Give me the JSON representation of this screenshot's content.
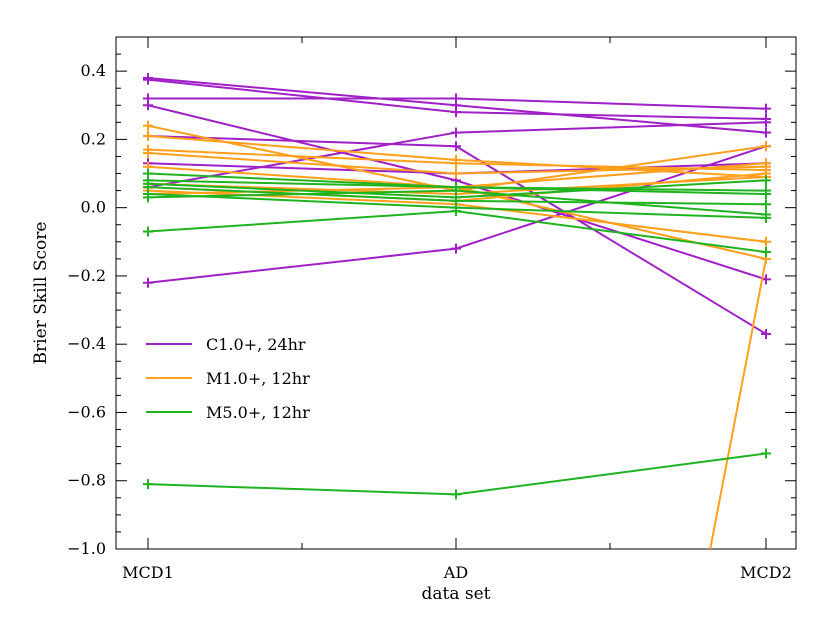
{
  "chart_data": {
    "type": "line",
    "categories": [
      "MCD1",
      "AD",
      "MCD2"
    ],
    "xlabel": "data set",
    "ylabel": "Brier Skill Score",
    "ylim": [
      -1.0,
      0.5
    ],
    "yticks": [
      -1.0,
      -0.8,
      -0.6,
      -0.4,
      -0.2,
      0.0,
      0.2,
      0.4
    ],
    "ytick_labels": [
      "−1.0",
      "−0.8",
      "−0.6",
      "−0.4",
      "−0.2",
      "0.0",
      "0.2",
      "0.4"
    ],
    "grid": false,
    "legend_position": "lower-left",
    "groups": [
      {
        "name": "C1.0+, 24hr",
        "color": "#a020c8",
        "series": [
          [
            0.38,
            0.3,
            0.22
          ],
          [
            0.375,
            0.28,
            0.26
          ],
          [
            0.32,
            0.32,
            0.29
          ],
          [
            0.3,
            0.08,
            -0.21
          ],
          [
            0.21,
            0.18,
            -0.37
          ],
          [
            0.13,
            0.1,
            0.13
          ],
          [
            0.06,
            0.22,
            0.25
          ],
          [
            -0.22,
            -0.12,
            0.18
          ]
        ]
      },
      {
        "name": "M1.0+, 12hr",
        "color": "#ff9f1c",
        "series": [
          [
            0.24,
            0.05,
            0.18
          ],
          [
            0.21,
            0.14,
            0.09
          ],
          [
            0.17,
            0.13,
            0.11
          ],
          [
            0.16,
            0.1,
            0.12
          ],
          [
            0.12,
            0.06,
            0.13
          ],
          [
            0.07,
            0.04,
            0.09
          ],
          [
            0.06,
            0.02,
            0.1
          ],
          [
            0.05,
            0.01,
            -0.1
          ],
          [
            0.04,
            0.06,
            -0.15
          ]
        ],
        "outlier": {
          "from": [
            2,
            -0.15
          ],
          "to_y": -1.0,
          "to_x": 1.82
        }
      },
      {
        "name": "M5.0+, 12hr",
        "color": "#1fb41f",
        "series": [
          [
            0.1,
            0.06,
            0.04
          ],
          [
            0.08,
            0.06,
            0.05
          ],
          [
            0.07,
            0.03,
            0.08
          ],
          [
            0.06,
            0.02,
            0.01
          ],
          [
            0.04,
            0.0,
            -0.03
          ],
          [
            0.03,
            0.05,
            -0.02
          ],
          [
            -0.07,
            -0.01,
            -0.13
          ],
          [
            -0.81,
            -0.84,
            -0.72
          ]
        ]
      }
    ]
  }
}
